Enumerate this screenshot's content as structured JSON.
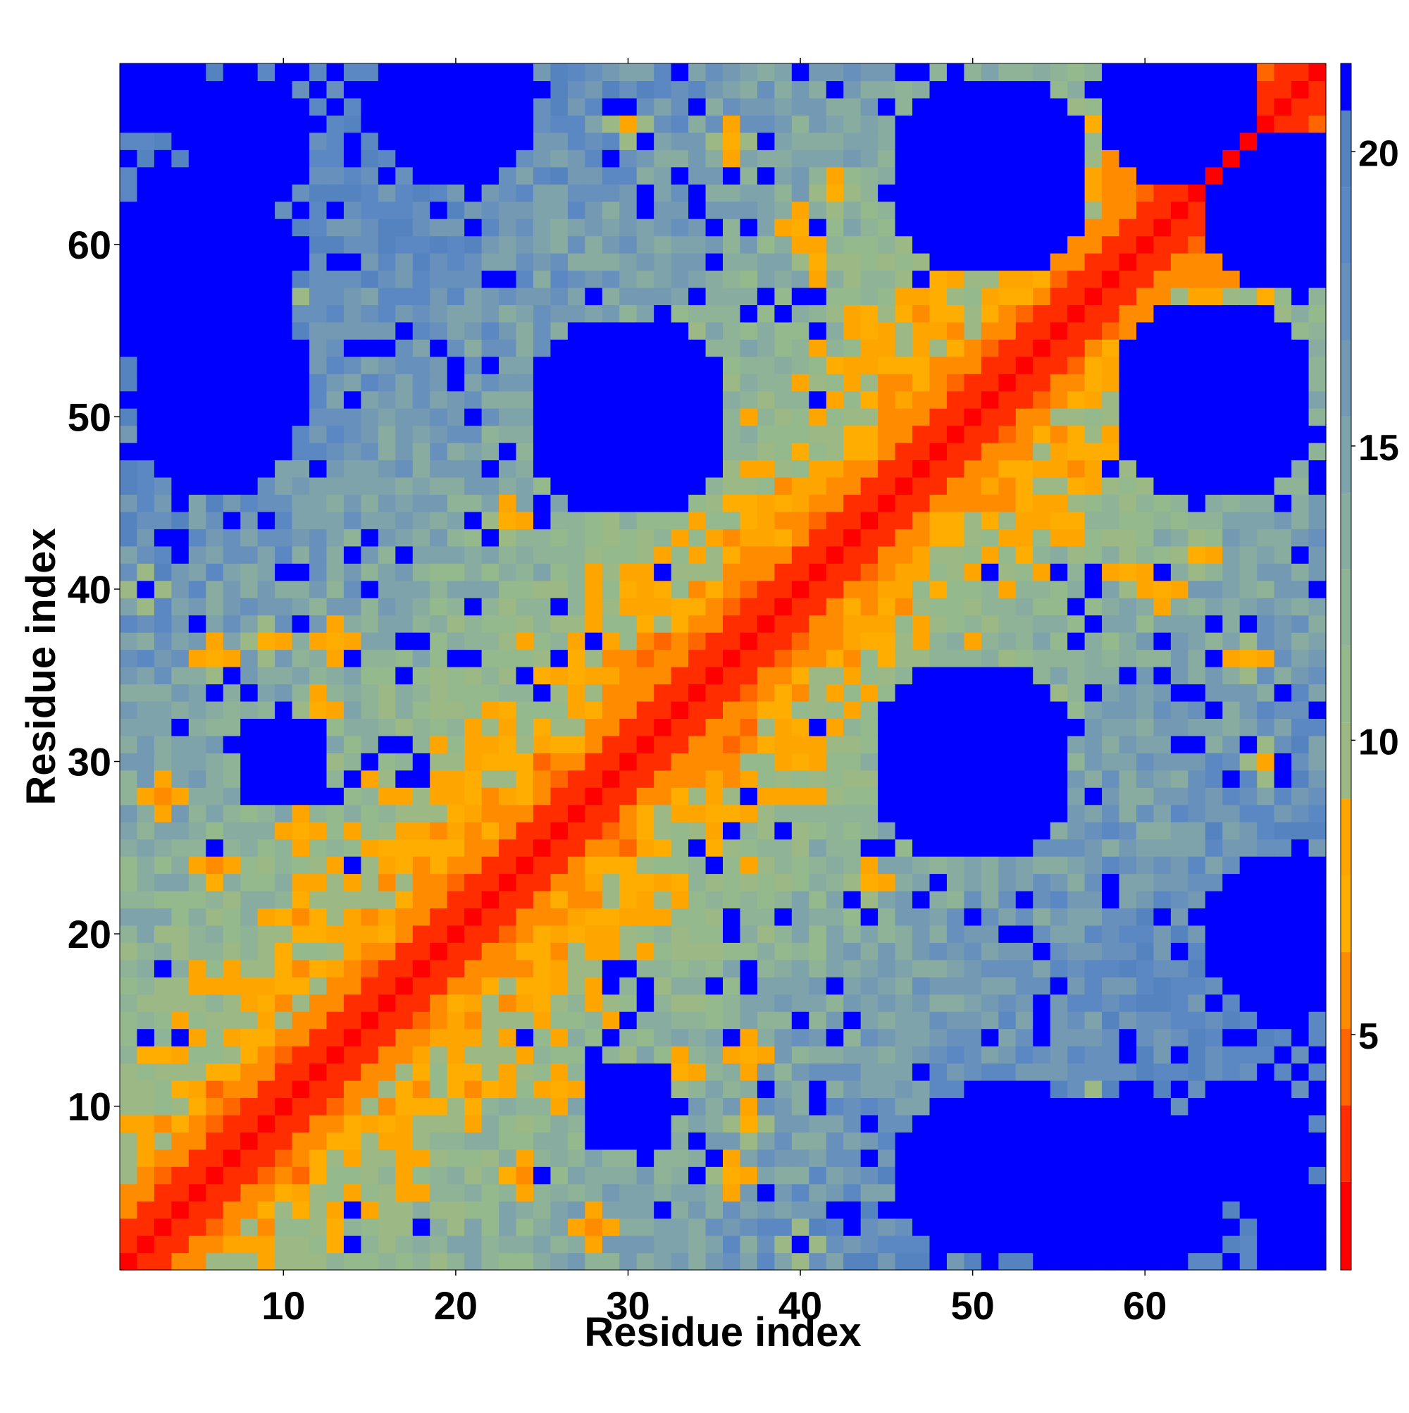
{
  "chart_data": {
    "type": "heatmap",
    "title": "",
    "xlabel": "Residue index",
    "ylabel": "Residue index",
    "n_residues": 70,
    "xlim": [
      1,
      70
    ],
    "ylim": [
      1,
      70
    ],
    "x_ticks": [
      10,
      20,
      30,
      40,
      50,
      60
    ],
    "y_ticks": [
      10,
      20,
      30,
      40,
      50,
      60
    ],
    "symmetric": true,
    "colorbar": {
      "ticks": [
        5,
        10,
        15,
        20
      ],
      "min": 1,
      "max": 21.5,
      "colors": [
        {
          "max": 2.5,
          "color": "#ff0000"
        },
        {
          "max": 3.8,
          "color": "#ff2d00"
        },
        {
          "max": 5.1,
          "color": "#ff6600"
        },
        {
          "max": 6.4,
          "color": "#ff8c00"
        },
        {
          "max": 7.7,
          "color": "#ffad00"
        },
        {
          "max": 9.0,
          "color": "#ffa500"
        },
        {
          "max": 10.3,
          "color": "#9cb884"
        },
        {
          "max": 11.6,
          "color": "#93b98c"
        },
        {
          "max": 12.9,
          "color": "#8fb396"
        },
        {
          "max": 14.2,
          "color": "#88aca0"
        },
        {
          "max": 15.5,
          "color": "#7fa3aa"
        },
        {
          "max": 16.8,
          "color": "#7399b3"
        },
        {
          "max": 18.1,
          "color": "#6790bc"
        },
        {
          "max": 19.4,
          "color": "#5b88c2"
        },
        {
          "max": 20.7,
          "color": "#5583bf"
        },
        {
          "max": 99,
          "color": "#0000ff"
        }
      ]
    },
    "contact_peaks": [
      {
        "i": 3,
        "j": 28,
        "d": 6
      },
      {
        "i": 6,
        "j": 24,
        "d": 6
      },
      {
        "i": 9,
        "j": 37,
        "d": 7
      },
      {
        "i": 12,
        "j": 33,
        "d": 7
      },
      {
        "i": 13,
        "j": 37,
        "d": 6
      },
      {
        "i": 11,
        "j": 21,
        "d": 5
      },
      {
        "i": 11,
        "j": 26,
        "d": 6
      },
      {
        "i": 6,
        "j": 36,
        "d": 7
      },
      {
        "i": 2,
        "j": 40,
        "d": 8
      },
      {
        "i": 23,
        "j": 44,
        "d": 7
      },
      {
        "i": 29,
        "j": 52,
        "d": 7
      },
      {
        "i": 33,
        "j": 55,
        "d": 8
      },
      {
        "i": 36,
        "j": 66,
        "d": 7
      },
      {
        "i": 40,
        "j": 61,
        "d": 6
      },
      {
        "i": 42,
        "j": 63,
        "d": 7
      },
      {
        "i": 41,
        "j": 59,
        "d": 7
      },
      {
        "i": 44,
        "j": 55,
        "d": 6
      },
      {
        "i": 45,
        "j": 53,
        "d": 6
      },
      {
        "i": 47,
        "j": 56,
        "d": 6
      },
      {
        "i": 30,
        "j": 67,
        "d": 8
      },
      {
        "i": 8,
        "j": 67,
        "d": 7
      },
      {
        "i": 10,
        "j": 57,
        "d": 7
      }
    ],
    "far_regions": [
      {
        "ci": 50,
        "cj": 30,
        "r": 6
      },
      {
        "ci": 64,
        "cj": 51,
        "r": 6
      },
      {
        "ci": 58,
        "cj": 5,
        "r": 6
      },
      {
        "ci": 68,
        "cj": 20,
        "r": 5
      },
      {
        "ci": 68,
        "cj": 62,
        "r": 5
      },
      {
        "ci": 50,
        "cj": 6,
        "r": 5
      },
      {
        "ci": 66,
        "cj": 8,
        "r": 4
      },
      {
        "ci": 2,
        "cj": 70,
        "r": 4
      },
      {
        "ci": 8,
        "cj": 52,
        "r": 4
      },
      {
        "ci": 30,
        "cj": 10,
        "r": 3
      }
    ]
  }
}
